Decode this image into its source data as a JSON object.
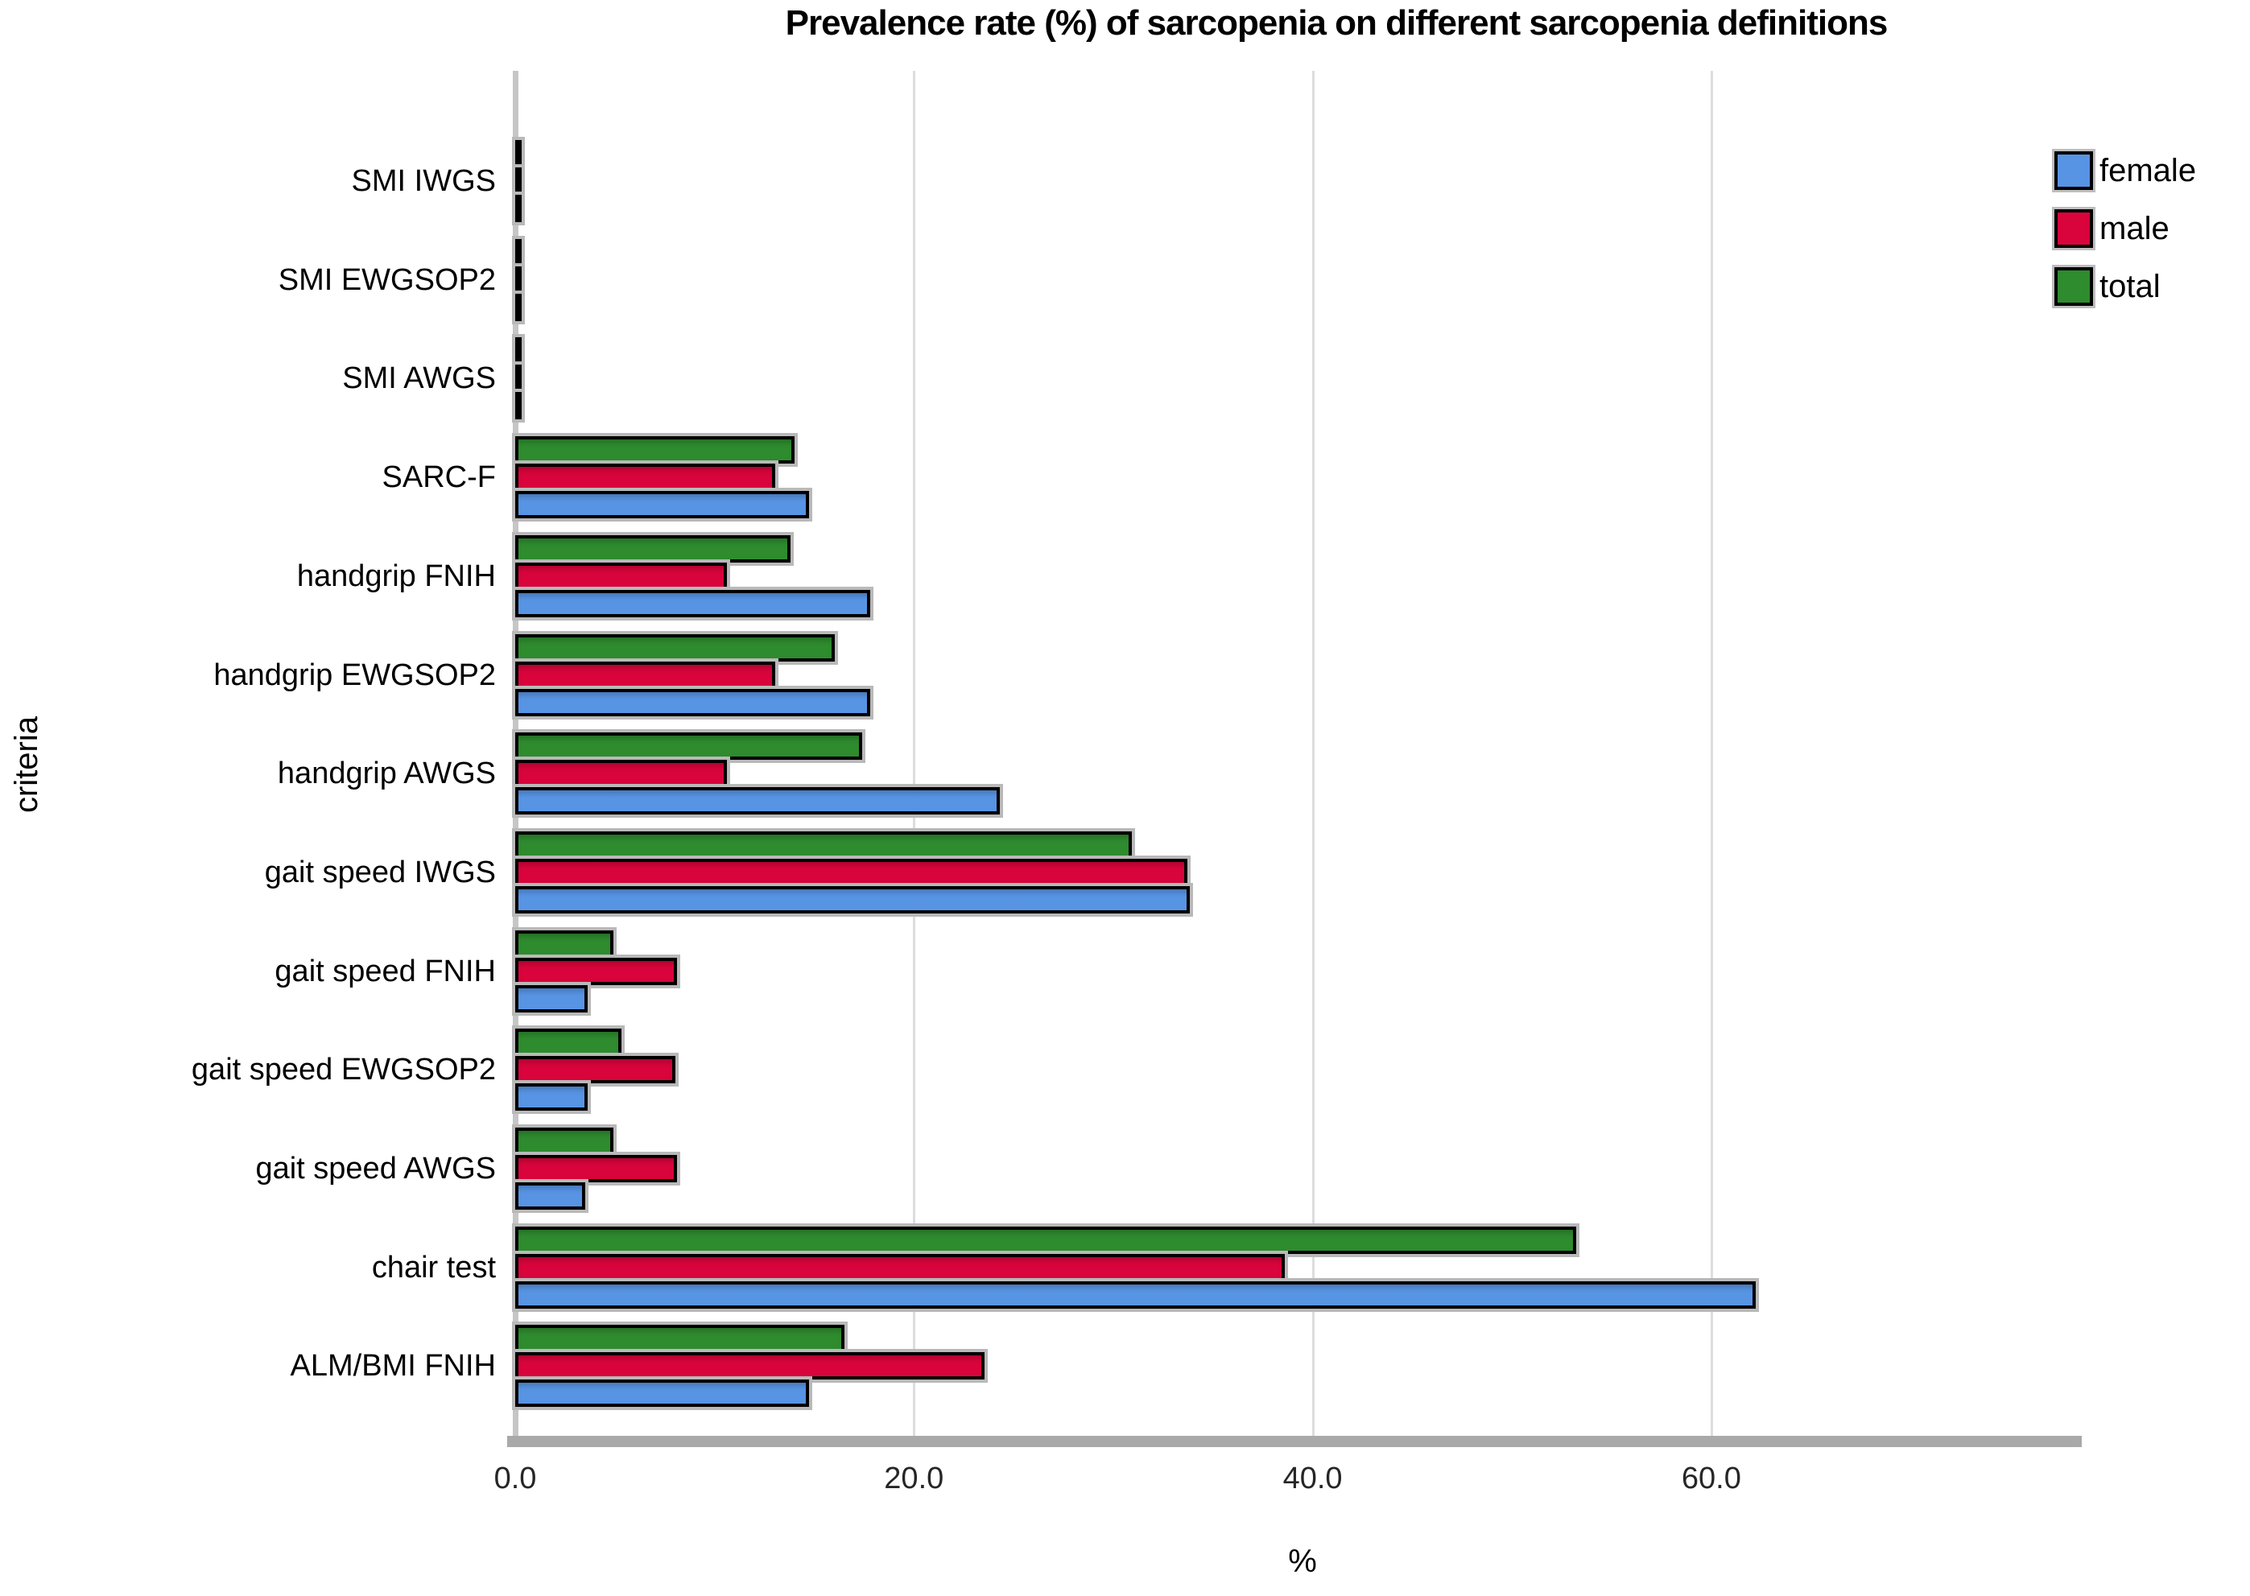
{
  "title": "Prevalence rate (%) of sarcopenia on different sarcopenia definitions",
  "chart_data": {
    "type": "bar",
    "orientation": "horizontal",
    "title": "Prevalence rate (%) of sarcopenia on different sarcopenia definitions",
    "xlabel": "%",
    "ylabel": "criteria",
    "xlim": [
      0,
      78.5
    ],
    "x_ticks": [
      0,
      20,
      40,
      60
    ],
    "x_tick_labels": [
      "0.0",
      "20.0",
      "40.0",
      "60.0"
    ],
    "grid": "vertical",
    "legend_position": "top-right",
    "bar_order_top_to_bottom": [
      "total",
      "male",
      "female"
    ],
    "categories_top_to_bottom": [
      "SMI IWGS",
      "SMI EWGSOP2",
      "SMI AWGS",
      "SARC-F",
      "handgrip FNIH",
      "handgrip EWGSOP2",
      "handgrip AWGS",
      "gait speed IWGS",
      "gait speed FNIH",
      "gait speed EWGSOP2",
      "gait speed AWGS",
      "chair test",
      "ALM/BMI FNIH"
    ],
    "series": [
      {
        "name": "female",
        "color": "#5794E4",
        "values": [
          0,
          0,
          0,
          14.4,
          17.5,
          17.5,
          24.0,
          33.5,
          3.3,
          3.3,
          3.2,
          61.9,
          14.4
        ]
      },
      {
        "name": "male",
        "color": "#D8043B",
        "values": [
          0,
          0,
          0,
          12.7,
          10.3,
          12.7,
          10.3,
          33.4,
          7.8,
          7.7,
          7.8,
          38.3,
          23.2
        ]
      },
      {
        "name": "total",
        "color": "#2E8B2E",
        "values": [
          0,
          0,
          0,
          13.7,
          13.5,
          15.7,
          17.1,
          30.6,
          4.6,
          5.0,
          4.6,
          52.9,
          16.2
        ]
      }
    ]
  },
  "legend": {
    "items": [
      {
        "label": "female",
        "color": "#5794E4"
      },
      {
        "label": "male",
        "color": "#D8043B"
      },
      {
        "label": "total",
        "color": "#2E8B2E"
      }
    ]
  },
  "colors": {
    "background": "#ffffff",
    "bar_outline": "#000000",
    "bar_shadow": "#b9b9b9",
    "gridline": "#dddddd",
    "y_axis_line": "#c6c6c6",
    "x_baseline": "#a9a9a9",
    "text": "#000000"
  }
}
